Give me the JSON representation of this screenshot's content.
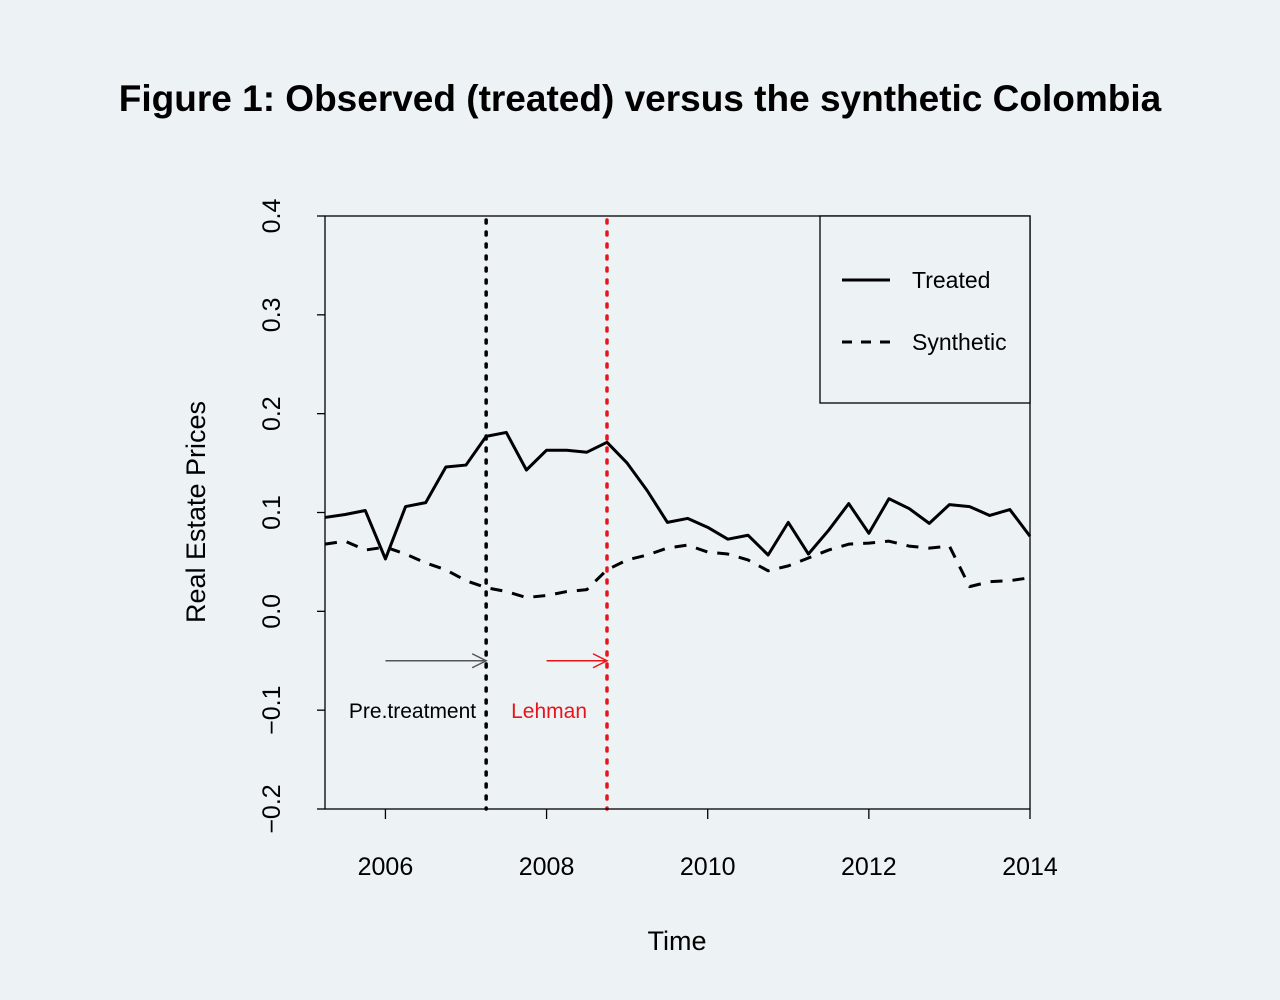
{
  "figure_title": "Figure 1: Observed (treated) versus the synthetic Colombia",
  "chart_data": {
    "type": "line",
    "xlabel": "Time",
    "ylabel": "Real Estate Prices",
    "xlim": [
      2005.25,
      2014
    ],
    "ylim": [
      -0.2,
      0.4
    ],
    "x_ticks": [
      2006,
      2008,
      2010,
      2012,
      2014
    ],
    "x_tick_labels": [
      "2006",
      "2008",
      "2010",
      "2012",
      "2014"
    ],
    "y_ticks": [
      -0.2,
      -0.1,
      0.0,
      0.1,
      0.2,
      0.3,
      0.4
    ],
    "y_tick_labels": [
      "−0.2",
      "−0.1",
      "0.0",
      "0.1",
      "0.2",
      "0.3",
      "0.4"
    ],
    "grid": false,
    "legend_position": "top-right",
    "x": [
      2005.25,
      2005.5,
      2005.75,
      2006.0,
      2006.25,
      2006.5,
      2006.75,
      2007.0,
      2007.25,
      2007.5,
      2007.75,
      2008.0,
      2008.25,
      2008.5,
      2008.75,
      2009.0,
      2009.25,
      2009.5,
      2009.75,
      2010.0,
      2010.25,
      2010.5,
      2010.75,
      2011.0,
      2011.25,
      2011.5,
      2011.75,
      2012.0,
      2012.25,
      2012.5,
      2012.75,
      2013.0,
      2013.25,
      2013.5,
      2013.75,
      2014.0
    ],
    "series": [
      {
        "name": "Treated",
        "style": "solid",
        "color": "#000000",
        "values": [
          0.095,
          0.098,
          0.102,
          0.053,
          0.106,
          0.11,
          0.146,
          0.148,
          0.177,
          0.181,
          0.143,
          0.163,
          0.163,
          0.161,
          0.171,
          0.15,
          0.122,
          0.09,
          0.094,
          0.085,
          0.073,
          0.077,
          0.057,
          0.09,
          0.058,
          0.082,
          0.109,
          0.079,
          0.114,
          0.104,
          0.089,
          0.108,
          0.106,
          0.097,
          0.103,
          0.076
        ]
      },
      {
        "name": "Synthetic",
        "style": "dashed",
        "color": "#000000",
        "values": [
          0.068,
          0.071,
          0.062,
          0.065,
          0.058,
          0.049,
          0.042,
          0.031,
          0.024,
          0.02,
          0.014,
          0.016,
          0.02,
          0.022,
          0.042,
          0.052,
          0.057,
          0.064,
          0.067,
          0.06,
          0.058,
          0.052,
          0.041,
          0.046,
          0.054,
          0.062,
          0.068,
          0.069,
          0.071,
          0.066,
          0.064,
          0.066,
          0.025,
          0.03,
          0.031,
          0.034
        ]
      }
    ],
    "vertical_lines": [
      {
        "x": 2007.25,
        "color": "#000000",
        "style": "dotted"
      },
      {
        "x": 2008.75,
        "color": "#e8141c",
        "style": "dotted"
      }
    ],
    "annotations": [
      {
        "text": "Pre.treatment",
        "color": "#000000",
        "arrow_from": 2006.0,
        "arrow_to": 2007.25,
        "arrow_y": -0.05,
        "text_y": -0.1
      },
      {
        "text": "Lehman",
        "color": "#e8141c",
        "arrow_from": 2008.0,
        "arrow_to": 2008.75,
        "arrow_y": -0.05,
        "text_y": -0.1
      }
    ]
  }
}
